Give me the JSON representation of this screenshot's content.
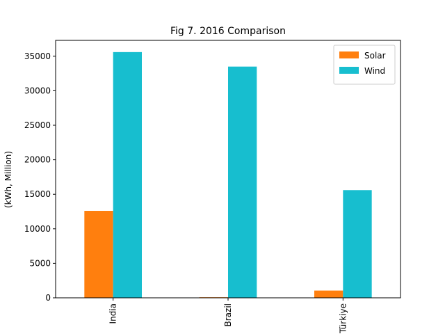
{
  "chart_data": {
    "type": "bar",
    "title": "Fig 7. 2016 Comparison",
    "xlabel": "",
    "ylabel": "(kWh, Million)",
    "categories": [
      "India",
      "Brazil",
      "Türkiye"
    ],
    "series": [
      {
        "name": "Solar",
        "color": "#ff7f0e",
        "values": [
          12600,
          85,
          1050
        ]
      },
      {
        "name": "Wind",
        "color": "#17becf",
        "values": [
          35600,
          33500,
          15600
        ]
      }
    ],
    "ylim": [
      0,
      37300
    ],
    "yticks": [
      0,
      5000,
      10000,
      15000,
      20000,
      25000,
      30000,
      35000
    ],
    "grid": false,
    "legend_position": "top-right"
  }
}
